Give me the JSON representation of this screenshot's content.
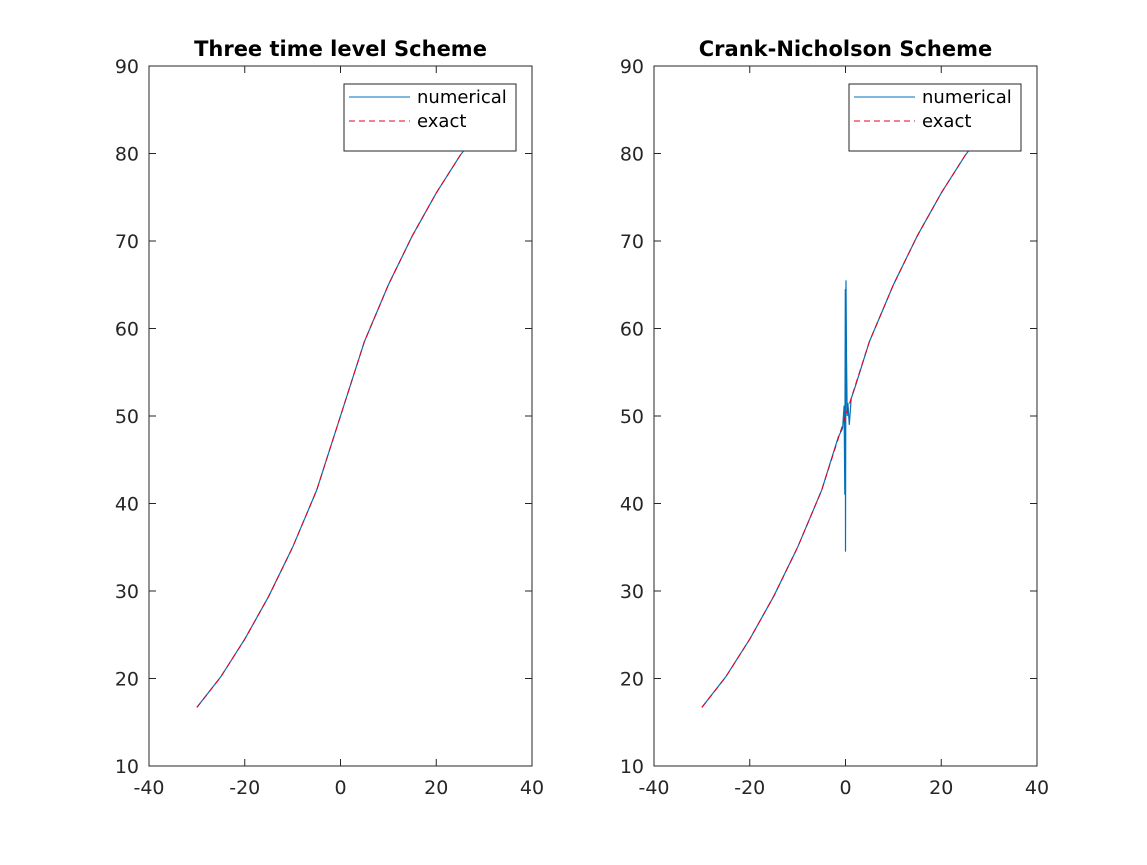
{
  "chart_data": [
    {
      "type": "line",
      "title": "Three time level Scheme",
      "xlabel": "",
      "ylabel": "",
      "xlim": [
        -40,
        40
      ],
      "ylim": [
        10,
        90
      ],
      "xticks": [
        -40,
        -20,
        0,
        20,
        40
      ],
      "yticks": [
        10,
        20,
        30,
        40,
        50,
        60,
        70,
        80,
        90
      ],
      "grid": false,
      "legend_position": "top-right",
      "series": [
        {
          "name": "numerical",
          "color": "#0072BD",
          "style": "solid",
          "x": [
            -30,
            -25,
            -20,
            -15,
            -10,
            -5,
            0,
            5,
            10,
            15,
            20,
            25,
            30
          ],
          "y": [
            16.7,
            20.2,
            24.5,
            29.4,
            35.0,
            41.5,
            50.0,
            58.5,
            65.0,
            70.6,
            75.5,
            79.8,
            83.3
          ]
        },
        {
          "name": "exact",
          "color": "#E8001C",
          "style": "dashed",
          "x": [
            -30,
            -25,
            -20,
            -15,
            -10,
            -5,
            0,
            5,
            10,
            15,
            20,
            25,
            30
          ],
          "y": [
            16.7,
            20.2,
            24.5,
            29.4,
            35.0,
            41.5,
            50.0,
            58.5,
            65.0,
            70.6,
            75.5,
            79.8,
            83.3
          ]
        }
      ]
    },
    {
      "type": "line",
      "title": "Crank-Nicholson Scheme",
      "xlabel": "",
      "ylabel": "",
      "xlim": [
        -40,
        40
      ],
      "ylim": [
        10,
        90
      ],
      "xticks": [
        -40,
        -20,
        0,
        20,
        40
      ],
      "yticks": [
        10,
        20,
        30,
        40,
        50,
        60,
        70,
        80,
        90
      ],
      "grid": false,
      "legend_position": "top-right",
      "series": [
        {
          "name": "numerical",
          "color": "#0072BD",
          "style": "solid",
          "x": [
            -30,
            -25,
            -20,
            -15,
            -10,
            -5,
            -1.5,
            -0.6,
            -0.3,
            -0.15,
            -0.05,
            0.0,
            0.1,
            0.2,
            0.35,
            0.5,
            0.8,
            1.2,
            2.0,
            5,
            10,
            15,
            20,
            25,
            30
          ],
          "y": [
            16.7,
            20.2,
            24.5,
            29.4,
            35.0,
            41.5,
            47.6,
            48.6,
            51.2,
            41.0,
            64.5,
            34.5,
            65.5,
            57.0,
            50.0,
            51.5,
            49.0,
            52.0,
            53.3,
            58.5,
            65.0,
            70.6,
            75.5,
            79.8,
            83.3
          ]
        },
        {
          "name": "exact",
          "color": "#E8001C",
          "style": "dashed",
          "x": [
            -30,
            -25,
            -20,
            -15,
            -10,
            -5,
            0,
            5,
            10,
            15,
            20,
            25,
            30
          ],
          "y": [
            16.7,
            20.2,
            24.5,
            29.4,
            35.0,
            41.5,
            50.0,
            58.5,
            65.0,
            70.6,
            75.5,
            79.8,
            83.3
          ]
        }
      ]
    }
  ]
}
